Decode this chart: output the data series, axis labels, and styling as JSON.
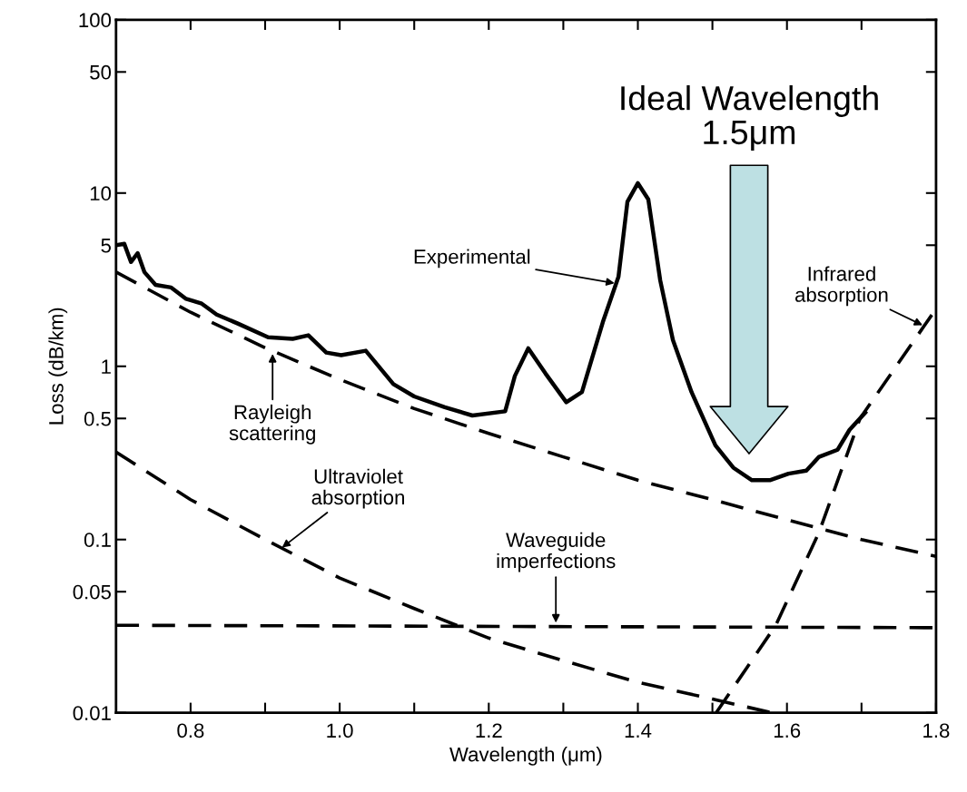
{
  "chart_data": {
    "type": "line",
    "xlabel": "Wavelength (μm)",
    "ylabel": "Loss (dB/km)",
    "log": "y",
    "grid": false,
    "legend": false,
    "xlim": [
      0.7,
      1.8
    ],
    "xticks": [
      0.8,
      {
        "value": 0.9,
        "label": null
      },
      {
        "value": 1.0,
        "label": "1.0"
      },
      {
        "value": 1.1,
        "label": null
      },
      1.2,
      {
        "value": 1.3,
        "label": null
      },
      1.4,
      {
        "value": 1.5,
        "label": null
      },
      1.6,
      {
        "value": 1.7,
        "label": null
      },
      1.8
    ],
    "ylim": [
      0.01,
      100
    ],
    "yticks": [
      0.01,
      0.05,
      0.1,
      0.5,
      1,
      5,
      10,
      50,
      100
    ],
    "series": [
      {
        "color": "#000000",
        "line_style": "solid",
        "x": [
          0.701,
          0.711,
          0.72,
          0.729,
          0.738,
          0.753,
          0.774,
          0.794,
          0.815,
          0.835,
          0.864,
          0.904,
          0.937,
          0.958,
          0.982,
          1.002,
          1.035,
          1.072,
          1.1,
          1.141,
          1.178,
          1.222,
          1.235,
          1.253,
          1.276,
          1.304,
          1.325,
          1.353,
          1.374,
          1.386,
          1.4,
          1.414,
          1.43,
          1.447,
          1.472,
          1.504,
          1.528,
          1.553,
          1.577,
          1.602,
          1.626,
          1.643,
          1.668,
          1.684,
          1.705
        ],
        "values": [
          5.0,
          5.1,
          4.0,
          4.5,
          3.5,
          2.95,
          2.85,
          2.45,
          2.3,
          1.99,
          1.76,
          1.47,
          1.44,
          1.51,
          1.2,
          1.16,
          1.23,
          0.79,
          0.67,
          0.58,
          0.52,
          0.55,
          0.88,
          1.27,
          0.91,
          0.62,
          0.71,
          1.8,
          3.29,
          8.9,
          11.4,
          9.2,
          3.13,
          1.42,
          0.71,
          0.35,
          0.26,
          0.22,
          0.22,
          0.24,
          0.25,
          0.3,
          0.33,
          0.43,
          0.54
        ]
      },
      {
        "color": "#000000",
        "line_style": "dashed",
        "x": [
          0.7,
          0.8,
          0.9,
          1.0,
          1.1,
          1.2,
          1.3,
          1.4,
          1.5,
          1.6,
          1.7,
          1.8
        ],
        "values": [
          3.5,
          2.05,
          1.28,
          0.84,
          0.57,
          0.41,
          0.3,
          0.22,
          0.17,
          0.13,
          0.1,
          0.08
        ]
      },
      {
        "color": "#000000",
        "line_style": "dashed",
        "x": [
          0.7,
          0.8,
          0.9,
          1.0,
          1.1,
          1.2,
          1.3,
          1.4,
          1.5,
          1.58
        ],
        "values": [
          0.32,
          0.17,
          0.1,
          0.06,
          0.04,
          0.027,
          0.02,
          0.015,
          0.012,
          0.01
        ]
      },
      {
        "color": "#000000",
        "line_style": "dashed",
        "x": [
          0.7,
          1.8
        ],
        "values": [
          0.032,
          0.031
        ]
      },
      {
        "color": "#000000",
        "line_style": "dashed",
        "x": [
          1.505,
          1.585,
          1.643,
          1.698,
          1.795
        ],
        "values": [
          0.01,
          0.032,
          0.11,
          0.5,
          2.0
        ]
      }
    ],
    "annotations": [
      {
        "text": "Experimental",
        "x": 1.372,
        "y": 3.0
      },
      {
        "text": "Rayleigh\nscattering",
        "x": 0.91,
        "y": 1.22
      },
      {
        "text": "Ultraviolet\nabsorption",
        "x": 0.92,
        "y": 0.088
      },
      {
        "text": "Waveguide\nimperfections",
        "x": 1.29,
        "y": 0.032
      },
      {
        "text": "Infrared\nabsorption",
        "x": 1.785,
        "y": 1.7
      },
      "Ideal Wavelength\n1.5μm"
    ]
  }
}
